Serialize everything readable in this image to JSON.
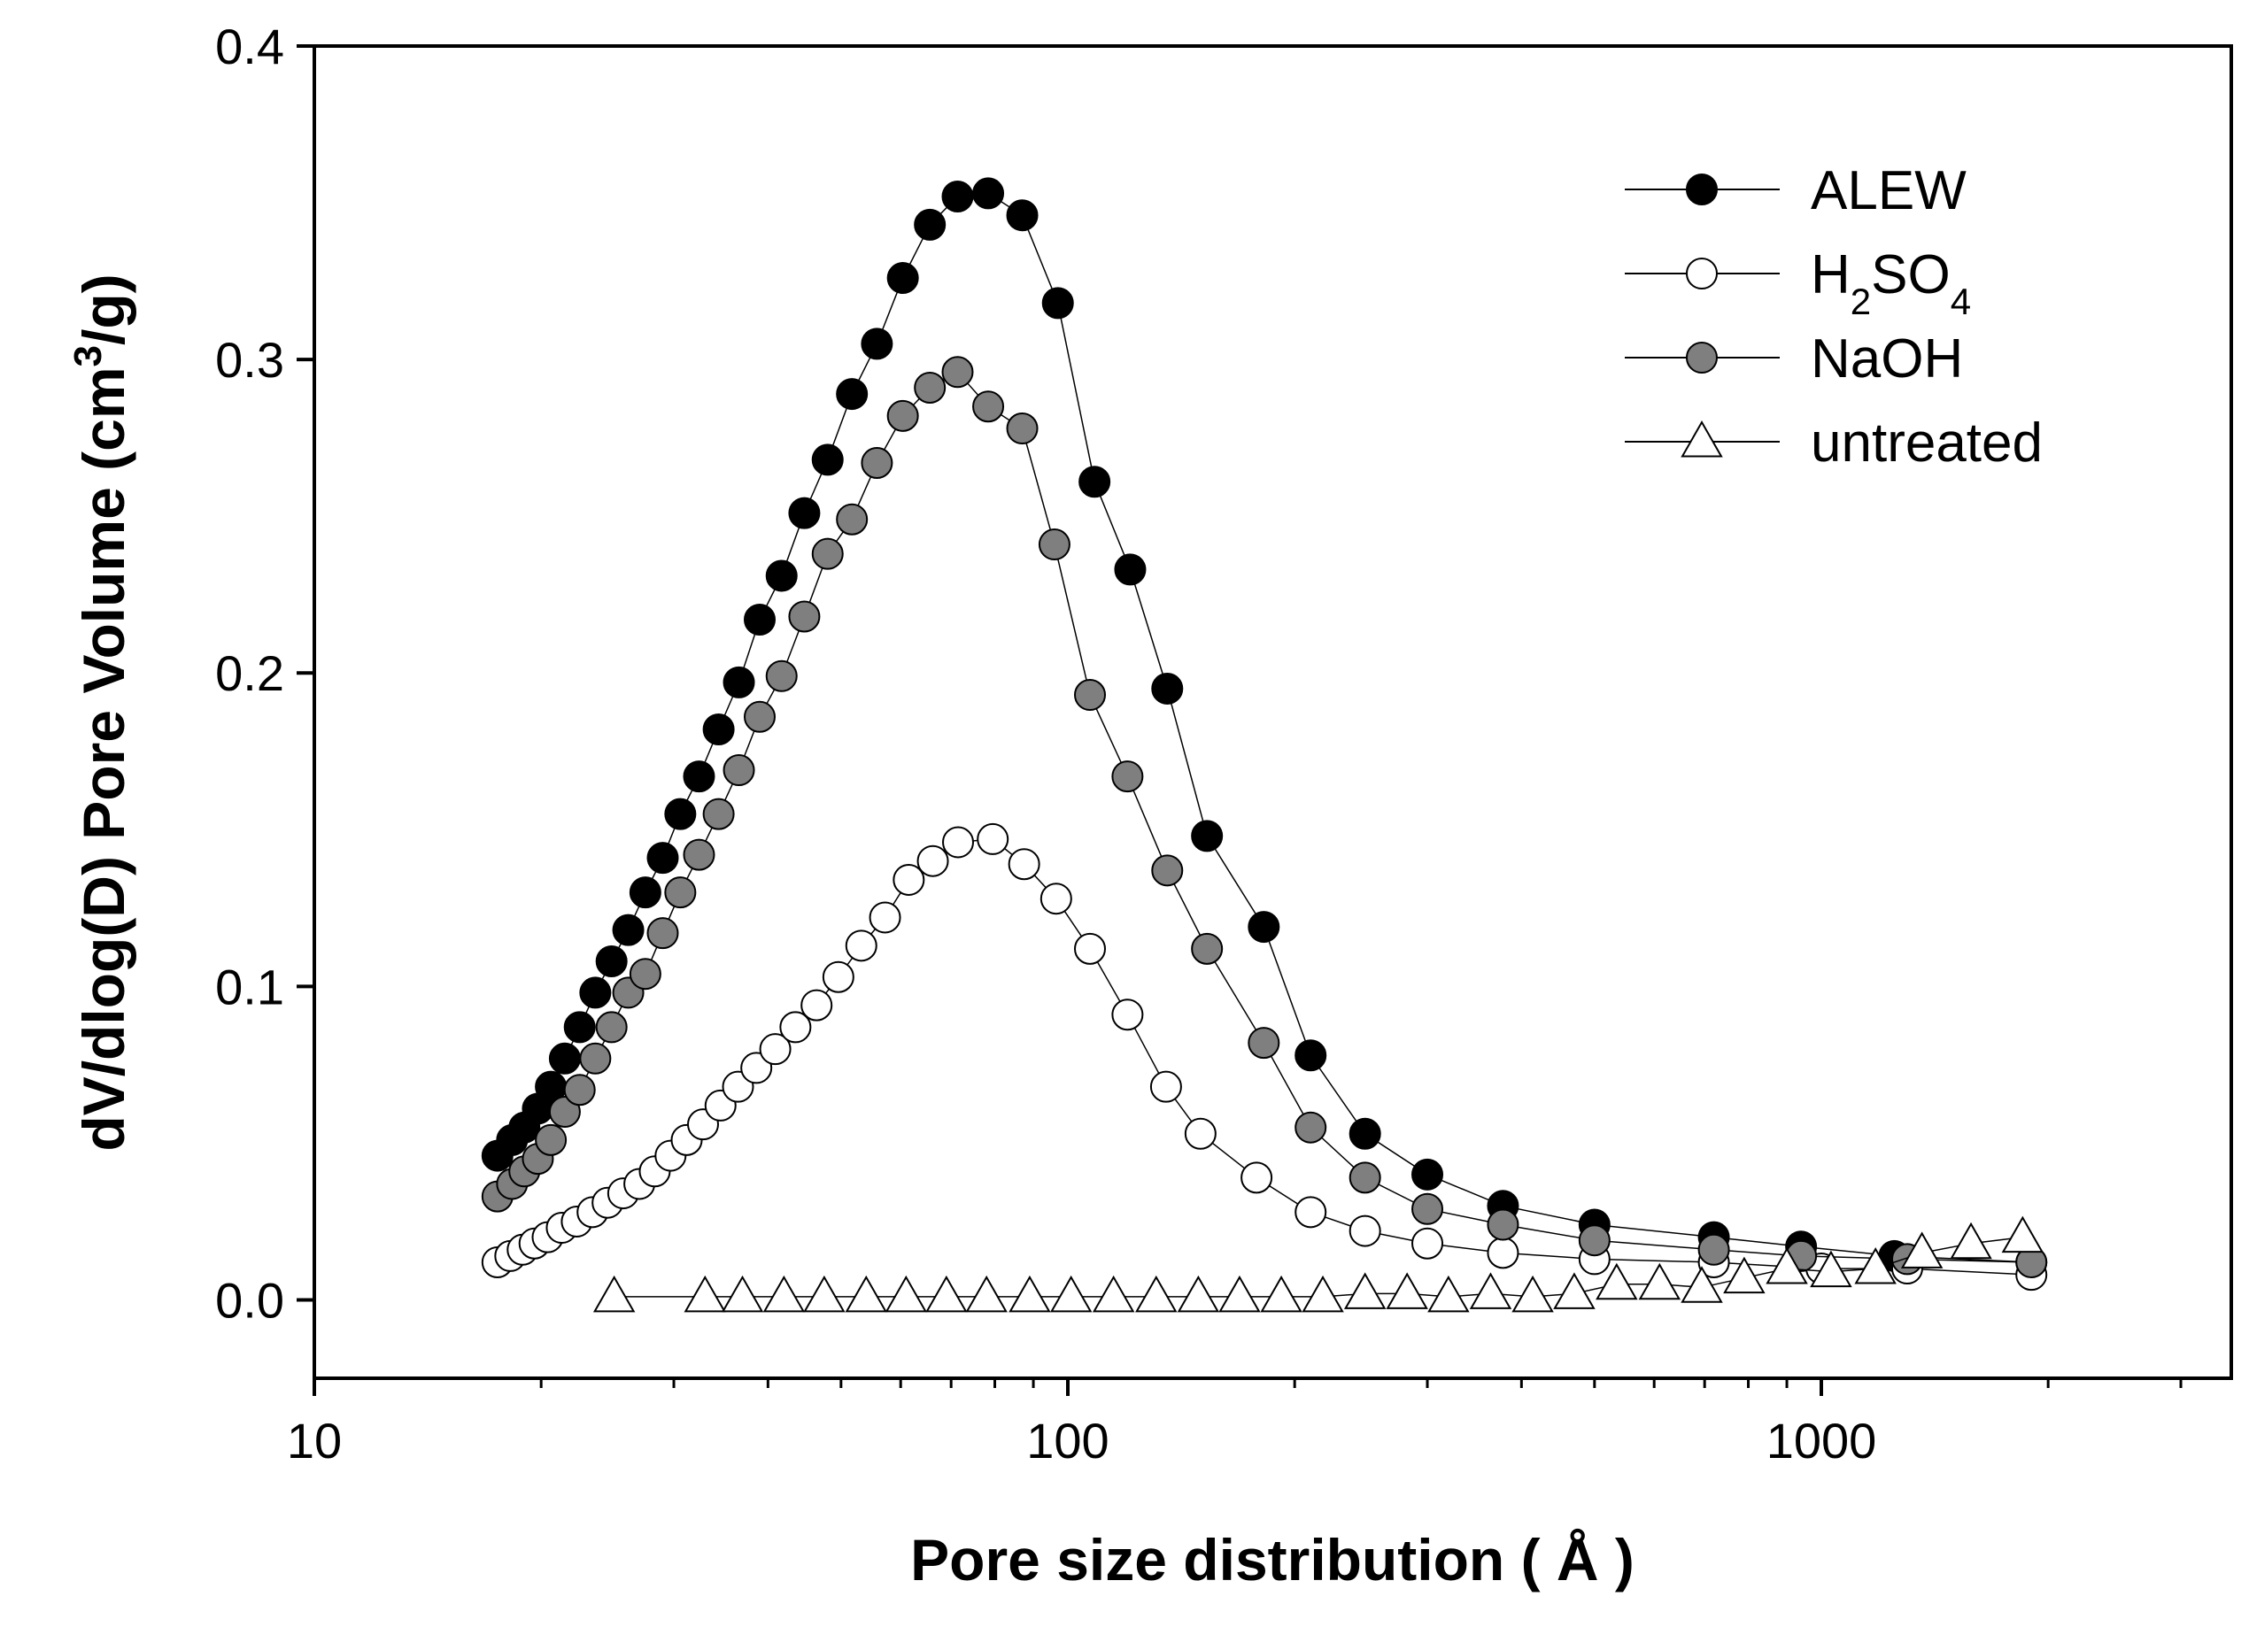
{
  "chart_data": {
    "type": "scatter",
    "title": "",
    "xlabel": "Pore size distribution ( Å )",
    "ylabel_parts": [
      "dV/dlog(D) Pore Volume (cm",
      "3",
      "/g)"
    ],
    "xscale": "log",
    "xlim": [
      10,
      3500
    ],
    "ylim": [
      -0.025,
      0.4
    ],
    "xticks": [
      10,
      100,
      1000
    ],
    "xtick_labels": [
      "10",
      "100",
      "1000"
    ],
    "yticks": [
      0.0,
      0.1,
      0.2,
      0.3,
      0.4
    ],
    "ytick_labels": [
      "0.0",
      "0.1",
      "0.2",
      "0.3",
      "0.4"
    ],
    "grid": false,
    "legend_position": "top-right",
    "series": [
      {
        "name": "ALEW",
        "legend_label": [
          "ALEW"
        ],
        "marker": "circle",
        "fill": "#000000",
        "x": [
          17.5,
          18.3,
          19.0,
          19.8,
          20.6,
          21.5,
          22.5,
          23.6,
          24.8,
          26.1,
          27.5,
          29.0,
          30.6,
          32.4,
          34.4,
          36.6,
          39.0,
          41.7,
          44.7,
          48.0,
          51.7,
          55.8,
          60.4,
          65.6,
          71.4,
          78.4,
          87.0,
          97.0,
          108.5,
          121.0,
          135.5,
          153.0,
          182.0,
          210.0,
          248.0,
          300.0,
          378.0,
          500.0,
          720.0,
          940.0,
          1250.0,
          1900.0
        ],
        "values": [
          0.046,
          0.051,
          0.055,
          0.061,
          0.068,
          0.077,
          0.087,
          0.098,
          0.108,
          0.118,
          0.13,
          0.141,
          0.155,
          0.167,
          0.182,
          0.197,
          0.217,
          0.231,
          0.251,
          0.268,
          0.289,
          0.305,
          0.326,
          0.343,
          0.352,
          0.353,
          0.346,
          0.318,
          0.261,
          0.233,
          0.195,
          0.148,
          0.119,
          0.078,
          0.053,
          0.04,
          0.03,
          0.024,
          0.02,
          0.017,
          0.014,
          0.012
        ]
      },
      {
        "name": "H2SO4",
        "legend_label": [
          "H",
          "2",
          "SO",
          "4"
        ],
        "marker": "circle",
        "fill": "#ffffff",
        "x": [
          17.5,
          18.2,
          18.9,
          19.6,
          20.4,
          21.3,
          22.3,
          23.4,
          24.5,
          25.7,
          27.0,
          28.3,
          29.7,
          31.2,
          32.8,
          34.6,
          36.5,
          38.6,
          40.9,
          43.5,
          46.4,
          49.6,
          53.2,
          57.2,
          61.5,
          66.2,
          71.5,
          79.5,
          87.5,
          96.5,
          107.0,
          120.0,
          135.0,
          150.0,
          178.0,
          210.0,
          248.0,
          300.0,
          378.0,
          500.0,
          720.0,
          1000.0,
          1300.0,
          1900.0
        ],
        "values": [
          0.012,
          0.014,
          0.016,
          0.018,
          0.02,
          0.023,
          0.025,
          0.028,
          0.031,
          0.034,
          0.037,
          0.041,
          0.046,
          0.051,
          0.056,
          0.062,
          0.068,
          0.074,
          0.08,
          0.087,
          0.094,
          0.103,
          0.113,
          0.122,
          0.134,
          0.14,
          0.146,
          0.147,
          0.139,
          0.128,
          0.112,
          0.091,
          0.068,
          0.053,
          0.039,
          0.028,
          0.022,
          0.018,
          0.015,
          0.013,
          0.012,
          0.01,
          0.01,
          0.008
        ]
      },
      {
        "name": "NaOH",
        "legend_label": [
          "NaOH"
        ],
        "marker": "circle",
        "fill": "#7f7f7f",
        "x": [
          17.5,
          18.3,
          19.0,
          19.8,
          20.6,
          21.5,
          22.5,
          23.6,
          24.8,
          26.1,
          27.5,
          29.0,
          30.6,
          32.4,
          34.4,
          36.6,
          39.0,
          41.7,
          44.7,
          48.0,
          51.7,
          55.8,
          60.4,
          65.6,
          71.4,
          78.4,
          87.0,
          96.0,
          107.0,
          120.0,
          135.5,
          153.0,
          182.0,
          210.0,
          248.0,
          300.0,
          378.0,
          500.0,
          720.0,
          940.0,
          1300.0,
          1900.0
        ],
        "values": [
          0.033,
          0.037,
          0.041,
          0.045,
          0.051,
          0.06,
          0.067,
          0.077,
          0.087,
          0.098,
          0.104,
          0.117,
          0.13,
          0.142,
          0.155,
          0.169,
          0.186,
          0.199,
          0.218,
          0.238,
          0.249,
          0.267,
          0.282,
          0.291,
          0.296,
          0.285,
          0.278,
          0.241,
          0.193,
          0.167,
          0.137,
          0.112,
          0.082,
          0.055,
          0.039,
          0.029,
          0.024,
          0.019,
          0.016,
          0.014,
          0.013,
          0.012
        ]
      },
      {
        "name": "untreated",
        "legend_label": [
          "untreated"
        ],
        "marker": "triangle",
        "fill": "#ffffff",
        "x": [
          25.0,
          33.0,
          37.0,
          42.0,
          47.5,
          54.0,
          61.0,
          69.0,
          78.0,
          89.0,
          101.0,
          115.0,
          131.0,
          149.0,
          169.0,
          192.0,
          218.0,
          248.0,
          282.0,
          320.0,
          364.0,
          414.0,
          470.0,
          535.0,
          610.0,
          694.0,
          790.0,
          900.0,
          1030.0,
          1180.0,
          1360.0,
          1580.0,
          1850.0
        ],
        "values": [
          0.001,
          0.001,
          0.001,
          0.001,
          0.001,
          0.001,
          0.001,
          0.001,
          0.001,
          0.001,
          0.001,
          0.001,
          0.001,
          0.001,
          0.001,
          0.001,
          0.001,
          0.002,
          0.002,
          0.001,
          0.002,
          0.001,
          0.002,
          0.005,
          0.005,
          0.004,
          0.007,
          0.01,
          0.009,
          0.01,
          0.015,
          0.018,
          0.02
        ]
      }
    ]
  }
}
